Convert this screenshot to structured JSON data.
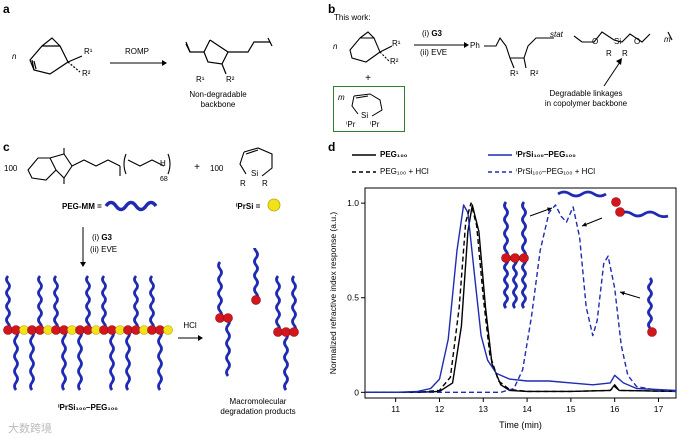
{
  "panel_a": {
    "letter": "a",
    "reaction": "ROMP",
    "caption_line1": "Non-degradable",
    "caption_line2": "backbone",
    "r1": "R¹",
    "r2": "R²",
    "n": "n"
  },
  "panel_b": {
    "letter": "b",
    "intro": "This work:",
    "plus": "+",
    "step1_prefix": "(i) ",
    "step1_bold": "G3",
    "step2": "(ii) EVE",
    "stat": "stat",
    "ph": "Ph",
    "si": "Si",
    "o": "O",
    "ipr": "ⁱPr",
    "r": "R",
    "m": "m",
    "caption_line1": "Degradable linkages",
    "caption_line2": "in copolymer backbone"
  },
  "panel_c": {
    "letter": "c",
    "coef": "100",
    "peg_index": "68",
    "h": "H",
    "peg_mm_label": "PEG-MM =",
    "iprsi_label": "ⁱPrSi =",
    "plus": "+",
    "step1_prefix": "(i) ",
    "step1_bold": "G3",
    "step2": "(ii) EVE",
    "acid": "HCl",
    "brush_label": "ⁱPrSi₁₀₀–PEG₁₀₀",
    "products_line1": "Macromolecular",
    "products_line2": "degradation products"
  },
  "panel_d": {
    "letter": "d",
    "legend": [
      "PEG₁₀₀",
      "ⁱPrSi₁₀₀–PEG₁₀₀",
      "PEG₁₀₀ + HCl",
      "ⁱPrSi₁₀₀–PEG₁₀₀ + HCl"
    ]
  },
  "watermark": "大数跨境",
  "colors": {
    "blue": "#1f2bb0",
    "red": "#d3161d",
    "yellow": "#f2e21a",
    "green": "#2e7d32"
  },
  "chart_data": {
    "type": "line",
    "xlabel": "Time (min)",
    "ylabel": "Normalized refractive index response (a.u.)",
    "xlim": [
      10.3,
      17.4
    ],
    "ylim": [
      -0.03,
      1.08
    ],
    "xticks": [
      11,
      12,
      13,
      14,
      15,
      16,
      17
    ],
    "yticks": [
      0,
      0.5,
      1.0
    ],
    "ytick_labels": [
      "0",
      "0.5",
      "1.0"
    ],
    "series": [
      {
        "name": "PEG₁₀₀",
        "color": "#000000",
        "dash": "solid",
        "x": [
          10.3,
          11.5,
          12.0,
          12.3,
          12.5,
          12.65,
          12.75,
          12.9,
          13.05,
          13.2,
          13.4,
          13.6,
          14.0,
          15.0,
          15.9,
          16.0,
          16.1,
          17.4
        ],
        "y": [
          0,
          0,
          0.005,
          0.05,
          0.35,
          0.85,
          0.99,
          0.85,
          0.45,
          0.15,
          0.04,
          0.01,
          0.005,
          0.005,
          0.01,
          0.04,
          0.01,
          0.005
        ]
      },
      {
        "name": "ⁱPrSi₁₀₀–PEG₁₀₀",
        "color": "#1f2bb0",
        "dash": "solid",
        "x": [
          10.3,
          11.0,
          11.5,
          11.8,
          12.0,
          12.2,
          12.4,
          12.55,
          12.65,
          12.8,
          12.95,
          13.1,
          13.3,
          13.6,
          14.0,
          14.5,
          15.0,
          15.5,
          15.9,
          16.0,
          16.2,
          16.5,
          17.4
        ],
        "y": [
          0,
          0,
          0.005,
          0.02,
          0.07,
          0.28,
          0.75,
          0.99,
          0.95,
          0.62,
          0.3,
          0.17,
          0.1,
          0.07,
          0.06,
          0.06,
          0.05,
          0.04,
          0.05,
          0.09,
          0.05,
          0.02,
          0.01
        ]
      },
      {
        "name": "PEG₁₀₀ + HCl",
        "color": "#000000",
        "dash": "dash",
        "x": [
          10.3,
          11.5,
          12.0,
          12.25,
          12.45,
          12.6,
          12.72,
          12.85,
          13.0,
          13.15,
          13.35,
          13.6,
          14.0,
          15.0,
          15.9,
          16.0,
          16.1,
          17.4
        ],
        "y": [
          0,
          0,
          0.01,
          0.08,
          0.45,
          0.9,
          1.0,
          0.88,
          0.5,
          0.2,
          0.06,
          0.015,
          0.005,
          0.005,
          0.01,
          0.03,
          0.01,
          0.005
        ]
      },
      {
        "name": "ⁱPrSi₁₀₀–PEG₁₀₀ + HCl",
        "color": "#1f2bb0",
        "dash": "dash",
        "x": [
          10.3,
          13.4,
          13.7,
          13.9,
          14.1,
          14.3,
          14.5,
          14.65,
          14.78,
          14.9,
          15.05,
          15.2,
          15.35,
          15.5,
          15.6,
          15.75,
          15.85,
          16.0,
          16.15,
          16.3,
          16.5,
          17.0,
          17.4
        ],
        "y": [
          0,
          0,
          0.02,
          0.12,
          0.4,
          0.75,
          0.95,
          0.99,
          0.93,
          0.9,
          0.98,
          0.82,
          0.45,
          0.3,
          0.38,
          0.68,
          0.72,
          0.55,
          0.25,
          0.09,
          0.03,
          0.01,
          0.005
        ]
      }
    ]
  }
}
